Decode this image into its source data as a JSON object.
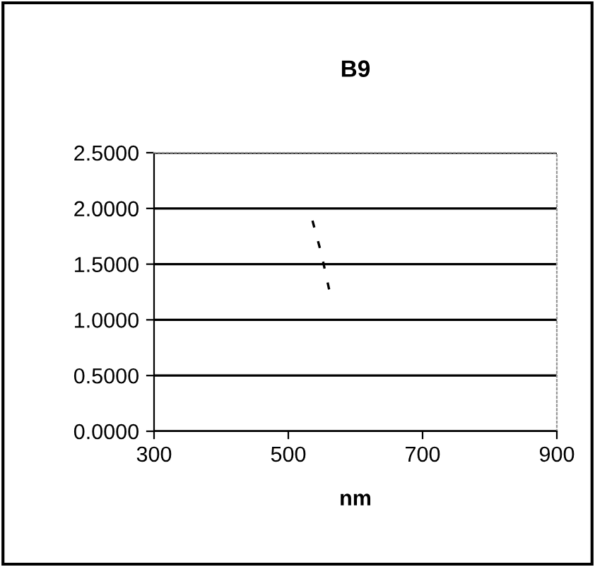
{
  "chart_data": {
    "type": "line",
    "title": "B9",
    "xlabel": "nm",
    "x": [
      536,
      549,
      562
    ],
    "series": [
      {
        "color": "#000000",
        "values": [
          1.89,
          1.6,
          1.24
        ]
      }
    ],
    "line_style": "dashed",
    "marker": "none",
    "xlim": [
      300,
      900
    ],
    "xticks": [
      300,
      500,
      700,
      900
    ],
    "ylim": [
      0,
      2.5
    ],
    "yticks": [
      {
        "value": 0,
        "label": "0.0000"
      },
      {
        "value": 0.5,
        "label": "0.5000"
      },
      {
        "value": 1,
        "label": "1.0000"
      },
      {
        "value": 1.5,
        "label": "1.5000"
      },
      {
        "value": 2,
        "label": "2.0000"
      },
      {
        "value": 2.5,
        "label": "2.5000"
      }
    ],
    "grid": "y",
    "legend": false
  }
}
